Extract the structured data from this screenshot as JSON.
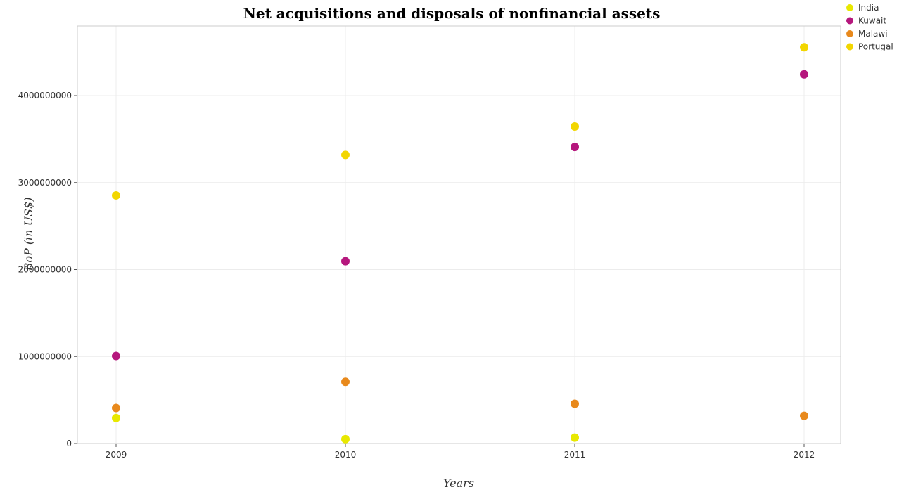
{
  "chart_data": {
    "type": "scatter",
    "title": "Net acquisitions and disposals of nonfinancial assets",
    "xlabel": "Years",
    "ylabel": "BoP (in US$)",
    "categories": [
      "2009",
      "2010",
      "2011",
      "2012"
    ],
    "ylim": [
      0,
      4800000000
    ],
    "yticks": [
      0,
      1000000000,
      2000000000,
      3000000000,
      4000000000
    ],
    "ytick_labels": [
      "0",
      "1000000000",
      "2000000000",
      "3000000000",
      "4000000000"
    ],
    "grid": true,
    "legend_position": "top-right",
    "series": [
      {
        "name": "India",
        "color": "#e8e800",
        "values": [
          293000000,
          50000000,
          68000000,
          null
        ]
      },
      {
        "name": "Kuwait",
        "color": "#b5177d",
        "values": [
          1006000000,
          2096000000,
          3409000000,
          4244000000
        ]
      },
      {
        "name": "Malawi",
        "color": "#e8891c",
        "values": [
          408000000,
          709000000,
          457000000,
          318000000
        ]
      },
      {
        "name": "Portugal",
        "color": "#f2d600",
        "values": [
          2853000000,
          3318000000,
          3644000000,
          4556000000
        ]
      }
    ]
  }
}
